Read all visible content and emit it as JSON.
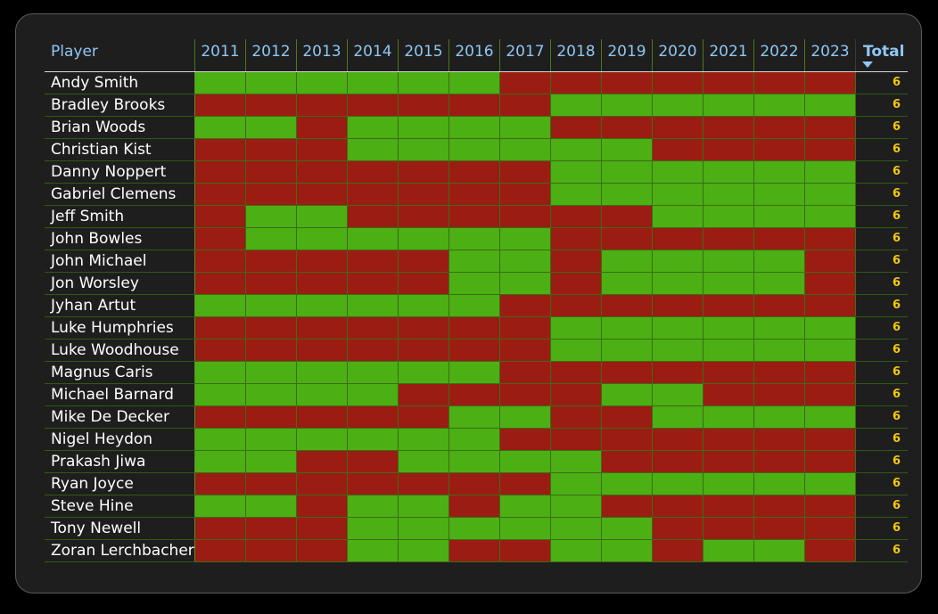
{
  "colors": {
    "win": "#4caf14",
    "loss": "#9b1c12",
    "total_text": "#f2c811",
    "header_text": "#8fc7f2"
  },
  "chart_data": {
    "type": "heatmap",
    "columns": [
      "Player",
      "2011",
      "2012",
      "2013",
      "2014",
      "2015",
      "2016",
      "2017",
      "2018",
      "2019",
      "2020",
      "2021",
      "2022",
      "2023",
      "Total"
    ],
    "sort": {
      "column": "Total",
      "direction": "descending"
    },
    "rows": [
      {
        "player": "Andy Smith",
        "cells": [
          1,
          1,
          1,
          1,
          1,
          1,
          0,
          0,
          0,
          0,
          0,
          0,
          0
        ],
        "total": "6"
      },
      {
        "player": "Bradley Brooks",
        "cells": [
          0,
          0,
          0,
          0,
          0,
          0,
          0,
          1,
          1,
          1,
          1,
          1,
          1
        ],
        "total": "6"
      },
      {
        "player": "Brian Woods",
        "cells": [
          1,
          1,
          0,
          1,
          1,
          1,
          1,
          0,
          0,
          0,
          0,
          0,
          0
        ],
        "total": "6"
      },
      {
        "player": "Christian Kist",
        "cells": [
          0,
          0,
          0,
          1,
          1,
          1,
          1,
          1,
          1,
          0,
          0,
          0,
          0
        ],
        "total": "6"
      },
      {
        "player": "Danny Noppert",
        "cells": [
          0,
          0,
          0,
          0,
          0,
          0,
          0,
          1,
          1,
          1,
          1,
          1,
          1
        ],
        "total": "6"
      },
      {
        "player": "Gabriel Clemens",
        "cells": [
          0,
          0,
          0,
          0,
          0,
          0,
          0,
          1,
          1,
          1,
          1,
          1,
          1
        ],
        "total": "6"
      },
      {
        "player": "Jeff Smith",
        "cells": [
          0,
          1,
          1,
          0,
          0,
          0,
          0,
          0,
          0,
          1,
          1,
          1,
          1
        ],
        "total": "6"
      },
      {
        "player": "John Bowles",
        "cells": [
          0,
          1,
          1,
          1,
          1,
          1,
          1,
          0,
          0,
          0,
          0,
          0,
          0
        ],
        "total": "6"
      },
      {
        "player": "John Michael",
        "cells": [
          0,
          0,
          0,
          0,
          0,
          1,
          1,
          0,
          1,
          1,
          1,
          1,
          0
        ],
        "total": "6"
      },
      {
        "player": "Jon Worsley",
        "cells": [
          0,
          0,
          0,
          0,
          0,
          1,
          1,
          0,
          1,
          1,
          1,
          1,
          0
        ],
        "total": "6"
      },
      {
        "player": "Jyhan Artut",
        "cells": [
          1,
          1,
          1,
          1,
          1,
          1,
          0,
          0,
          0,
          0,
          0,
          0,
          0
        ],
        "total": "6"
      },
      {
        "player": "Luke Humphries",
        "cells": [
          0,
          0,
          0,
          0,
          0,
          0,
          0,
          1,
          1,
          1,
          1,
          1,
          1
        ],
        "total": "6"
      },
      {
        "player": "Luke Woodhouse",
        "cells": [
          0,
          0,
          0,
          0,
          0,
          0,
          0,
          1,
          1,
          1,
          1,
          1,
          1
        ],
        "total": "6"
      },
      {
        "player": "Magnus Caris",
        "cells": [
          1,
          1,
          1,
          1,
          1,
          1,
          0,
          0,
          0,
          0,
          0,
          0,
          0
        ],
        "total": "6"
      },
      {
        "player": "Michael Barnard",
        "cells": [
          1,
          1,
          1,
          1,
          0,
          0,
          0,
          0,
          1,
          1,
          0,
          0,
          0
        ],
        "total": "6"
      },
      {
        "player": "Mike De Decker",
        "cells": [
          0,
          0,
          0,
          0,
          0,
          1,
          1,
          0,
          0,
          1,
          1,
          1,
          1
        ],
        "total": "6"
      },
      {
        "player": "Nigel Heydon",
        "cells": [
          1,
          1,
          1,
          1,
          1,
          1,
          0,
          0,
          0,
          0,
          0,
          0,
          0
        ],
        "total": "6"
      },
      {
        "player": "Prakash Jiwa",
        "cells": [
          1,
          1,
          0,
          0,
          1,
          1,
          1,
          1,
          0,
          0,
          0,
          0,
          0
        ],
        "total": "6"
      },
      {
        "player": "Ryan Joyce",
        "cells": [
          0,
          0,
          0,
          0,
          0,
          0,
          0,
          1,
          1,
          1,
          1,
          1,
          1
        ],
        "total": "6"
      },
      {
        "player": "Steve Hine",
        "cells": [
          1,
          1,
          0,
          1,
          1,
          0,
          1,
          1,
          0,
          0,
          0,
          0,
          0
        ],
        "total": "6"
      },
      {
        "player": "Tony Newell",
        "cells": [
          0,
          0,
          0,
          1,
          1,
          1,
          1,
          1,
          1,
          0,
          0,
          0,
          0
        ],
        "total": "6"
      },
      {
        "player": "Zoran Lerchbacher",
        "cells": [
          0,
          0,
          0,
          1,
          1,
          0,
          0,
          1,
          1,
          0,
          1,
          1,
          0
        ],
        "total": "6"
      }
    ]
  }
}
